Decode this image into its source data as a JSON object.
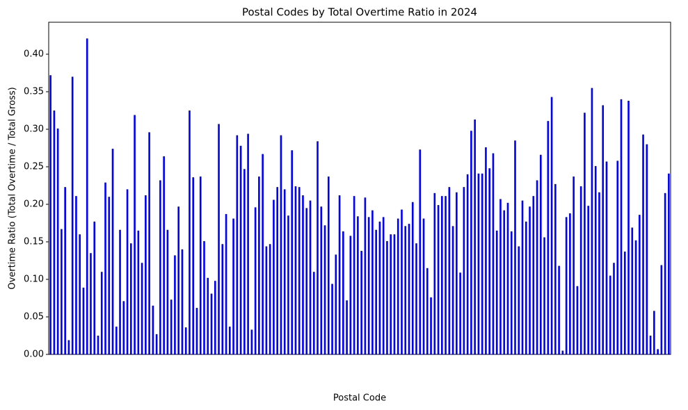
{
  "chart_data": {
    "type": "bar",
    "title": "Postal Codes by Total Overtime Ratio in 2024",
    "x_label": "Postal Code",
    "y_label": "Overtime Ratio (Total Overtime / Total Gross)",
    "color": "#0000ff",
    "categories": [
      null,
      null,
      null,
      null,
      null,
      null,
      null,
      null,
      null,
      null,
      null,
      null,
      null,
      null,
      null,
      null,
      null,
      null,
      null,
      null,
      null,
      null,
      null,
      null,
      null,
      null,
      null,
      null,
      null,
      null,
      null,
      null,
      null,
      null,
      null,
      null,
      null,
      null,
      null,
      null,
      null,
      null,
      null,
      null,
      null,
      null,
      null,
      null,
      null,
      null,
      null,
      null,
      null,
      null,
      null,
      null,
      null,
      null,
      null,
      null,
      null,
      null,
      null,
      null,
      null,
      null,
      null,
      null,
      null,
      null,
      null,
      null,
      null,
      null,
      null,
      null,
      null,
      null,
      null,
      null,
      null,
      null,
      null,
      null,
      null,
      null,
      null,
      null,
      null,
      null,
      null,
      null,
      null,
      null,
      null,
      null,
      null,
      null,
      null,
      null,
      null,
      null,
      null,
      null,
      null,
      null,
      null,
      null,
      null,
      null,
      null,
      null,
      null,
      null,
      null,
      null,
      null,
      null,
      null,
      null,
      null,
      null,
      null,
      null,
      null,
      null,
      null,
      null,
      null,
      null,
      null,
      null,
      null,
      null,
      null,
      null,
      null,
      null,
      null,
      null,
      null,
      null,
      null,
      null,
      null,
      null,
      null,
      null,
      null,
      null,
      null,
      null,
      null,
      null,
      null,
      null,
      null,
      null,
      null,
      null,
      null,
      null,
      null,
      null,
      null,
      null,
      null,
      null,
      null,
      null
    ],
    "values": [
      0.372,
      0.325,
      0.301,
      0.167,
      0.223,
      0.019,
      0.37,
      0.211,
      0.16,
      0.089,
      0.421,
      0.135,
      0.177,
      0.025,
      0.11,
      0.229,
      0.21,
      0.274,
      0.037,
      0.166,
      0.071,
      0.22,
      0.148,
      0.319,
      0.165,
      0.122,
      0.212,
      0.296,
      0.065,
      0.027,
      0.232,
      0.264,
      0.166,
      0.073,
      0.132,
      0.197,
      0.14,
      0.036,
      0.325,
      0.236,
      0.062,
      0.237,
      0.151,
      0.102,
      0.081,
      0.098,
      0.307,
      0.147,
      0.187,
      0.037,
      0.181,
      0.292,
      0.278,
      0.247,
      0.294,
      0.033,
      0.196,
      0.237,
      0.267,
      0.144,
      0.147,
      0.206,
      0.223,
      0.292,
      0.22,
      0.185,
      0.272,
      0.224,
      0.223,
      0.212,
      0.195,
      0.205,
      0.11,
      0.284,
      0.197,
      0.172,
      0.237,
      0.094,
      0.133,
      0.212,
      0.164,
      0.072,
      0.158,
      0.211,
      0.184,
      0.138,
      0.209,
      0.183,
      0.192,
      0.166,
      0.177,
      0.183,
      0.151,
      0.16,
      0.16,
      0.181,
      0.193,
      0.171,
      0.174,
      0.203,
      0.148,
      0.273,
      0.181,
      0.115,
      0.076,
      0.215,
      0.199,
      0.211,
      0.211,
      0.223,
      0.171,
      0.216,
      0.109,
      0.223,
      0.24,
      0.298,
      0.313,
      0.241,
      0.241,
      0.276,
      0.248,
      0.268,
      0.165,
      0.207,
      0.192,
      0.202,
      0.164,
      0.285,
      0.144,
      0.205,
      0.177,
      0.197,
      0.211,
      0.232,
      0.266,
      0.156,
      0.311,
      0.343,
      0.227,
      0.118,
      0.005,
      0.183,
      0.188,
      0.237,
      0.091,
      0.224,
      0.322,
      0.198,
      0.355,
      0.251,
      0.216,
      0.332,
      0.257,
      0.105,
      0.122,
      0.258,
      0.34,
      0.137,
      0.338,
      0.169,
      0.152,
      0.186,
      0.293,
      0.28,
      0.025,
      0.058,
      0.007,
      0.119,
      0.215,
      0.241
    ],
    "ylim": [
      0,
      0.4426
    ],
    "yticks": [
      {
        "value": 0,
        "label": "0.00"
      },
      {
        "value": 0.05,
        "label": "0.05"
      },
      {
        "value": 0.1,
        "label": "0.10"
      },
      {
        "value": 0.15,
        "label": "0.15"
      },
      {
        "value": 0.2,
        "label": "0.20"
      },
      {
        "value": 0.25,
        "label": "0.25"
      },
      {
        "value": 0.3,
        "label": "0.30"
      },
      {
        "value": 0.35,
        "label": "0.35"
      },
      {
        "value": 0.4,
        "label": "0.40"
      }
    ],
    "grid": false
  }
}
